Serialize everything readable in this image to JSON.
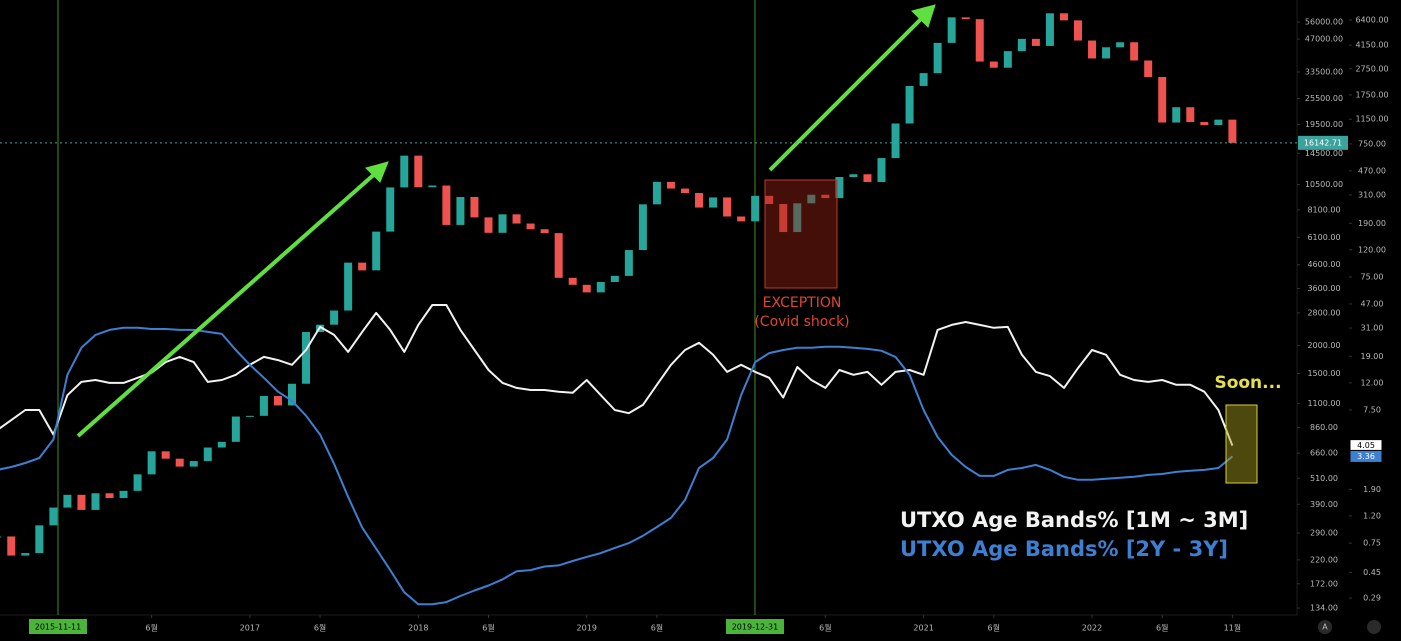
{
  "chart_data": {
    "type": "line",
    "log_scale": true,
    "grid": false,
    "legend": "lower right",
    "x": [
      "2015-07",
      "2015-08",
      "2015-09",
      "2015-10",
      "2015-11",
      "2015-12",
      "2016-01",
      "2016-02",
      "2016-03",
      "2016-04",
      "2016-05",
      "2016-06",
      "2016-07",
      "2016-08",
      "2016-09",
      "2016-10",
      "2016-11",
      "2016-12",
      "2017-01",
      "2017-02",
      "2017-03",
      "2017-04",
      "2017-05",
      "2017-06",
      "2017-07",
      "2017-08",
      "2017-09",
      "2017-10",
      "2017-11",
      "2017-12",
      "2018-01",
      "2018-02",
      "2018-03",
      "2018-04",
      "2018-05",
      "2018-06",
      "2018-07",
      "2018-08",
      "2018-09",
      "2018-10",
      "2018-11",
      "2018-12",
      "2019-01",
      "2019-02",
      "2019-03",
      "2019-04",
      "2019-05",
      "2019-06",
      "2019-07",
      "2019-08",
      "2019-09",
      "2019-10",
      "2019-11",
      "2019-12",
      "2020-01",
      "2020-02",
      "2020-03",
      "2020-04",
      "2020-05",
      "2020-06",
      "2020-07",
      "2020-08",
      "2020-09",
      "2020-10",
      "2020-11",
      "2020-12",
      "2021-01",
      "2021-02",
      "2021-03",
      "2021-04",
      "2021-05",
      "2021-06",
      "2021-07",
      "2021-08",
      "2021-09",
      "2021-10",
      "2021-11",
      "2021-12",
      "2022-01",
      "2022-02",
      "2022-03",
      "2022-04",
      "2022-05",
      "2022-06",
      "2022-07",
      "2022-08",
      "2022-09",
      "2022-10",
      "2022-11"
    ],
    "series": [
      {
        "style": "candles",
        "up_color": "#26a69a",
        "down_color": "#ef5350",
        "values": [
          280,
          230,
          236,
          314,
          377,
          430,
          368,
          437,
          416,
          448,
          531,
          673,
          624,
          575,
          609,
          700,
          742,
          963,
          970,
          1190,
          1080,
          1350,
          2300,
          2480,
          2870,
          4700,
          4340,
          6470,
          10200,
          14150,
          10220,
          10400,
          6930,
          9240,
          7490,
          6390,
          7730,
          7030,
          6630,
          6370,
          4020,
          3740,
          3460,
          3850,
          4100,
          5350,
          8570,
          10800,
          10080,
          9630,
          8290,
          9200,
          7560,
          7190,
          9350,
          8600,
          6440,
          8660,
          9460,
          9140,
          11350,
          11680,
          10780,
          13800,
          19700,
          29000,
          33100,
          45200,
          58800,
          57700,
          37300,
          35000,
          41500,
          47100,
          43800,
          61300,
          57000,
          46300,
          38500,
          43200,
          45500,
          37700,
          31800,
          19900,
          23300,
          20000,
          19400,
          20500,
          16142.71
        ]
      },
      {
        "name": "UTXO Age Bands% [1M ~ 3M]",
        "color": "#f2f2f2",
        "axis": "y2",
        "values": [
          5.3,
          6.3,
          7.5,
          7.5,
          4.9,
          9.7,
          12.2,
          12.6,
          12.0,
          12.0,
          13.1,
          14.3,
          17.2,
          18.8,
          17.2,
          12.2,
          12.6,
          13.8,
          16.4,
          18.8,
          17.8,
          16.4,
          21.2,
          31.6,
          27.5,
          20.5,
          29.0,
          40.3,
          30.0,
          20.5,
          32.7,
          46.2,
          46.2,
          30.0,
          21.2,
          15.0,
          12.0,
          11.0,
          10.6,
          10.6,
          10.3,
          10.1,
          12.6,
          9.7,
          7.5,
          7.1,
          8.2,
          11.6,
          16.4,
          21.2,
          24.0,
          19.5,
          14.5,
          16.4,
          14.5,
          13.1,
          9.3,
          15.8,
          12.6,
          11.0,
          15.0,
          13.8,
          14.5,
          11.6,
          14.5,
          15.0,
          13.8,
          30.0,
          32.7,
          34.4,
          32.7,
          31.1,
          31.6,
          19.5,
          14.5,
          13.5,
          11.0,
          15.5,
          21.2,
          19.5,
          13.8,
          12.6,
          12.2,
          12.6,
          11.6,
          11.6,
          10.3,
          7.5,
          4.05
        ]
      },
      {
        "name": "UTXO Age Bands% [2Y - 3Y]",
        "color": "#3d7fd1",
        "axis": "y2",
        "values": [
          2.66,
          2.8,
          3.0,
          3.27,
          4.5,
          13.8,
          22.0,
          27.5,
          30.0,
          31.1,
          31.1,
          30.5,
          30.5,
          30.0,
          30.0,
          29.0,
          28.0,
          21.2,
          16.4,
          13.1,
          10.3,
          8.8,
          6.8,
          4.9,
          2.95,
          1.67,
          0.98,
          0.68,
          0.47,
          0.32,
          0.26,
          0.26,
          0.27,
          0.3,
          0.33,
          0.36,
          0.4,
          0.46,
          0.47,
          0.5,
          0.51,
          0.55,
          0.59,
          0.63,
          0.69,
          0.75,
          0.85,
          0.99,
          1.16,
          1.58,
          2.75,
          3.27,
          4.5,
          9.7,
          17.2,
          20.1,
          21.2,
          22.0,
          22.0,
          22.4,
          22.4,
          22.0,
          21.6,
          20.9,
          18.8,
          13.8,
          7.5,
          4.7,
          3.45,
          2.8,
          2.4,
          2.4,
          2.66,
          2.75,
          2.9,
          2.66,
          2.36,
          2.24,
          2.24,
          2.28,
          2.32,
          2.36,
          2.44,
          2.48,
          2.57,
          2.62,
          2.66,
          2.75,
          3.36
        ]
      }
    ],
    "current_price": 16142.71,
    "xlim": [
      "2015-07-07",
      "2023-03-15"
    ],
    "xticks": [
      {
        "value": "2016-06",
        "label": "6월"
      },
      {
        "value": "2017-01",
        "label": "2017"
      },
      {
        "value": "2017-06",
        "label": "6월"
      },
      {
        "value": "2018-01",
        "label": "2018"
      },
      {
        "value": "2018-06",
        "label": "6월"
      },
      {
        "value": "2019-01",
        "label": "2019"
      },
      {
        "value": "2019-06",
        "label": "6월"
      },
      {
        "value": "2020-06",
        "label": "6월"
      },
      {
        "value": "2021-01",
        "label": "2021"
      },
      {
        "value": "2021-06",
        "label": "6월"
      },
      {
        "value": "2022-01",
        "label": "2022"
      },
      {
        "value": "2022-06",
        "label": "6월"
      },
      {
        "value": "2022-11",
        "label": "11월"
      }
    ],
    "vlines": [
      "2015-11-11",
      "2019-12-31"
    ],
    "ylim": [
      124.7,
      70300
    ],
    "yticks": [
      {
        "value": 56000,
        "label": "56000.00"
      },
      {
        "value": 47000,
        "label": "47000.00"
      },
      {
        "value": 33500,
        "label": "33500.00"
      },
      {
        "value": 25500,
        "label": "25500.00"
      },
      {
        "value": 19500,
        "label": "19500.00"
      },
      {
        "value": 14500,
        "label": "14500.00"
      },
      {
        "value": 10500,
        "label": "10500.00"
      },
      {
        "value": 8100,
        "label": "8100.00"
      },
      {
        "value": 6100,
        "label": "6100.00"
      },
      {
        "value": 4600,
        "label": "4600.00"
      },
      {
        "value": 3600,
        "label": "3600.00"
      },
      {
        "value": 2800,
        "label": "2800.00"
      },
      {
        "value": 2000,
        "label": "2000.00"
      },
      {
        "value": 1500,
        "label": "1500.00"
      },
      {
        "value": 1100,
        "label": "1100.00"
      },
      {
        "value": 860,
        "label": "860.00"
      },
      {
        "value": 660,
        "label": "660.00"
      },
      {
        "value": 510,
        "label": "510.00"
      },
      {
        "value": 390,
        "label": "390.00"
      },
      {
        "value": 290,
        "label": "290.00"
      },
      {
        "value": 220,
        "label": "220.00"
      },
      {
        "value": 172,
        "label": "172.00"
      },
      {
        "value": 134,
        "label": "134.00"
      }
    ],
    "y2lim": [
      0.216,
      9050
    ],
    "y2ticks": [
      {
        "value": 6400,
        "label": "6400.00"
      },
      {
        "value": 4150,
        "label": "4150.00"
      },
      {
        "value": 2750,
        "label": "2750.00"
      },
      {
        "value": 1750,
        "label": "1750.00"
      },
      {
        "value": 1150,
        "label": "1150.00"
      },
      {
        "value": 750,
        "label": "750.00"
      },
      {
        "value": 470,
        "label": "470.00"
      },
      {
        "value": 310,
        "label": "310.00"
      },
      {
        "value": 190,
        "label": "190.00"
      },
      {
        "value": 120,
        "label": "120.00"
      },
      {
        "value": 75,
        "label": "75.00"
      },
      {
        "value": 47,
        "label": "47.00"
      },
      {
        "value": 31,
        "label": "31.00"
      },
      {
        "value": 19,
        "label": "19.00"
      },
      {
        "value": 12,
        "label": "12.00"
      },
      {
        "value": 7.5,
        "label": "7.50"
      },
      {
        "value": 1.9,
        "label": "1.90"
      },
      {
        "value": 1.2,
        "label": "1.20"
      },
      {
        "value": 0.75,
        "label": "0.75"
      },
      {
        "value": 0.45,
        "label": "0.45"
      },
      {
        "value": 0.29,
        "label": "0.29"
      }
    ],
    "annotations": {
      "exception": "EXCEPTION",
      "covid": "(Covid shock)",
      "soon": "Soon..."
    },
    "scale_button": "A"
  }
}
